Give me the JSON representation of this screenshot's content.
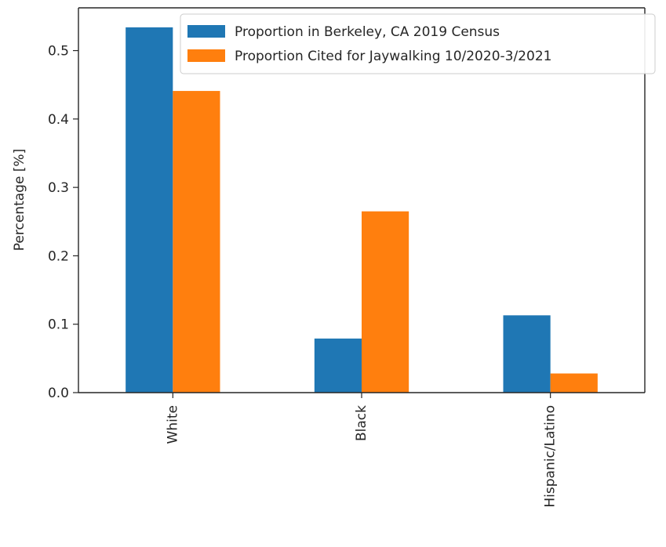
{
  "chart_data": {
    "type": "bar",
    "title": "",
    "xlabel": "",
    "ylabel": "Percentage [%]",
    "categories": [
      "White",
      "Black",
      "Hispanic/Latino"
    ],
    "series": [
      {
        "name": "Proportion in Berkeley, CA 2019 Census",
        "values": [
          0.534,
          0.079,
          0.113
        ],
        "color": "#1f77b4"
      },
      {
        "name": "Proportion Cited for Jaywalking 10/2020-3/2021",
        "values": [
          0.441,
          0.265,
          0.028
        ],
        "color": "#ff7f0e"
      }
    ],
    "ylim": [
      0,
      0.5625
    ],
    "yticks": [
      0.0,
      0.1,
      0.2,
      0.3,
      0.4,
      0.5
    ],
    "ytick_labels": [
      "0.0",
      "0.1",
      "0.2",
      "0.3",
      "0.4",
      "0.5"
    ],
    "grid": false,
    "legend_position": "upper right",
    "xtick_rotation": "vertical"
  }
}
